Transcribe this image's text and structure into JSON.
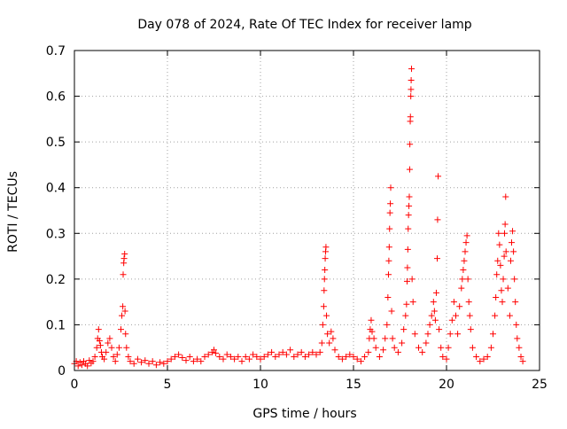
{
  "chart_data": {
    "type": "scatter",
    "title": "Day 078 of 2024, Rate Of TEC Index for receiver lamp",
    "xlabel": "GPS time / hours",
    "ylabel": "ROTI / TECUs",
    "xlim": [
      0,
      25
    ],
    "ylim": [
      0,
      0.7
    ],
    "xticks": [
      0,
      5,
      10,
      15,
      20,
      25
    ],
    "yticks": [
      0,
      0.1,
      0.2,
      0.3,
      0.4,
      0.5,
      0.6,
      0.7
    ],
    "xtick_labels": [
      "0",
      "5",
      "10",
      "15",
      "20",
      "25"
    ],
    "ytick_labels": [
      "0",
      "0.1",
      "0.2",
      "0.3",
      "0.4",
      "0.5",
      "0.6",
      "0.7"
    ],
    "grid": true,
    "marker": "+",
    "color": "#ff0000",
    "series": [
      {
        "name": "ROTI",
        "points": [
          [
            0.0,
            0.015
          ],
          [
            0.1,
            0.02
          ],
          [
            0.2,
            0.01
          ],
          [
            0.3,
            0.018
          ],
          [
            0.4,
            0.012
          ],
          [
            0.5,
            0.02
          ],
          [
            0.6,
            0.015
          ],
          [
            0.7,
            0.01
          ],
          [
            0.8,
            0.022
          ],
          [
            0.9,
            0.016
          ],
          [
            1.0,
            0.02
          ],
          [
            1.1,
            0.03
          ],
          [
            1.2,
            0.05
          ],
          [
            1.25,
            0.07
          ],
          [
            1.3,
            0.09
          ],
          [
            1.35,
            0.065
          ],
          [
            1.4,
            0.055
          ],
          [
            1.45,
            0.04
          ],
          [
            1.5,
            0.03
          ],
          [
            1.6,
            0.025
          ],
          [
            1.7,
            0.04
          ],
          [
            1.8,
            0.06
          ],
          [
            1.9,
            0.07
          ],
          [
            2.0,
            0.05
          ],
          [
            2.1,
            0.03
          ],
          [
            2.2,
            0.02
          ],
          [
            2.3,
            0.035
          ],
          [
            2.4,
            0.05
          ],
          [
            2.5,
            0.09
          ],
          [
            2.55,
            0.12
          ],
          [
            2.6,
            0.14
          ],
          [
            2.62,
            0.21
          ],
          [
            2.65,
            0.235
          ],
          [
            2.67,
            0.245
          ],
          [
            2.7,
            0.255
          ],
          [
            2.72,
            0.13
          ],
          [
            2.75,
            0.08
          ],
          [
            2.8,
            0.05
          ],
          [
            2.9,
            0.03
          ],
          [
            3.0,
            0.02
          ],
          [
            3.2,
            0.015
          ],
          [
            3.4,
            0.025
          ],
          [
            3.6,
            0.018
          ],
          [
            3.8,
            0.022
          ],
          [
            4.0,
            0.015
          ],
          [
            4.2,
            0.02
          ],
          [
            4.4,
            0.012
          ],
          [
            4.6,
            0.018
          ],
          [
            4.8,
            0.015
          ],
          [
            5.0,
            0.02
          ],
          [
            5.2,
            0.025
          ],
          [
            5.4,
            0.03
          ],
          [
            5.6,
            0.035
          ],
          [
            5.8,
            0.028
          ],
          [
            6.0,
            0.022
          ],
          [
            6.2,
            0.03
          ],
          [
            6.4,
            0.02
          ],
          [
            6.6,
            0.025
          ],
          [
            6.8,
            0.02
          ],
          [
            7.0,
            0.03
          ],
          [
            7.2,
            0.035
          ],
          [
            7.4,
            0.04
          ],
          [
            7.5,
            0.045
          ],
          [
            7.6,
            0.038
          ],
          [
            7.8,
            0.03
          ],
          [
            8.0,
            0.025
          ],
          [
            8.2,
            0.035
          ],
          [
            8.4,
            0.03
          ],
          [
            8.6,
            0.025
          ],
          [
            8.8,
            0.03
          ],
          [
            9.0,
            0.02
          ],
          [
            9.2,
            0.03
          ],
          [
            9.4,
            0.025
          ],
          [
            9.6,
            0.035
          ],
          [
            9.8,
            0.03
          ],
          [
            10.0,
            0.025
          ],
          [
            10.2,
            0.03
          ],
          [
            10.4,
            0.035
          ],
          [
            10.6,
            0.04
          ],
          [
            10.8,
            0.03
          ],
          [
            11.0,
            0.035
          ],
          [
            11.2,
            0.04
          ],
          [
            11.4,
            0.035
          ],
          [
            11.6,
            0.045
          ],
          [
            11.8,
            0.03
          ],
          [
            12.0,
            0.035
          ],
          [
            12.2,
            0.04
          ],
          [
            12.4,
            0.03
          ],
          [
            12.6,
            0.035
          ],
          [
            12.8,
            0.04
          ],
          [
            13.0,
            0.035
          ],
          [
            13.2,
            0.04
          ],
          [
            13.3,
            0.06
          ],
          [
            13.35,
            0.1
          ],
          [
            13.4,
            0.14
          ],
          [
            13.42,
            0.175
          ],
          [
            13.44,
            0.2
          ],
          [
            13.46,
            0.22
          ],
          [
            13.48,
            0.245
          ],
          [
            13.5,
            0.26
          ],
          [
            13.52,
            0.27
          ],
          [
            13.55,
            0.12
          ],
          [
            13.6,
            0.08
          ],
          [
            13.7,
            0.06
          ],
          [
            13.8,
            0.085
          ],
          [
            13.9,
            0.07
          ],
          [
            14.0,
            0.045
          ],
          [
            14.2,
            0.03
          ],
          [
            14.4,
            0.025
          ],
          [
            14.6,
            0.03
          ],
          [
            14.8,
            0.035
          ],
          [
            15.0,
            0.03
          ],
          [
            15.2,
            0.025
          ],
          [
            15.4,
            0.02
          ],
          [
            15.6,
            0.03
          ],
          [
            15.8,
            0.04
          ],
          [
            15.85,
            0.07
          ],
          [
            15.9,
            0.09
          ],
          [
            15.95,
            0.11
          ],
          [
            16.0,
            0.085
          ],
          [
            16.1,
            0.07
          ],
          [
            16.2,
            0.05
          ],
          [
            16.4,
            0.03
          ],
          [
            16.6,
            0.045
          ],
          [
            16.7,
            0.07
          ],
          [
            16.8,
            0.1
          ],
          [
            16.85,
            0.16
          ],
          [
            16.88,
            0.21
          ],
          [
            16.9,
            0.24
          ],
          [
            16.92,
            0.27
          ],
          [
            16.94,
            0.31
          ],
          [
            16.96,
            0.345
          ],
          [
            16.98,
            0.365
          ],
          [
            17.0,
            0.4
          ],
          [
            17.05,
            0.13
          ],
          [
            17.1,
            0.07
          ],
          [
            17.2,
            0.05
          ],
          [
            17.4,
            0.04
          ],
          [
            17.6,
            0.06
          ],
          [
            17.7,
            0.09
          ],
          [
            17.8,
            0.12
          ],
          [
            17.85,
            0.145
          ],
          [
            17.88,
            0.195
          ],
          [
            17.9,
            0.225
          ],
          [
            17.92,
            0.265
          ],
          [
            17.94,
            0.31
          ],
          [
            17.96,
            0.34
          ],
          [
            17.98,
            0.36
          ],
          [
            18.0,
            0.38
          ],
          [
            18.02,
            0.44
          ],
          [
            18.03,
            0.495
          ],
          [
            18.05,
            0.545
          ],
          [
            18.06,
            0.555
          ],
          [
            18.08,
            0.6
          ],
          [
            18.09,
            0.615
          ],
          [
            18.1,
            0.635
          ],
          [
            18.12,
            0.66
          ],
          [
            18.15,
            0.2
          ],
          [
            18.2,
            0.15
          ],
          [
            18.3,
            0.08
          ],
          [
            18.5,
            0.05
          ],
          [
            18.7,
            0.04
          ],
          [
            18.9,
            0.06
          ],
          [
            19.0,
            0.08
          ],
          [
            19.1,
            0.1
          ],
          [
            19.2,
            0.12
          ],
          [
            19.3,
            0.15
          ],
          [
            19.35,
            0.13
          ],
          [
            19.4,
            0.11
          ],
          [
            19.45,
            0.17
          ],
          [
            19.5,
            0.245
          ],
          [
            19.52,
            0.33
          ],
          [
            19.55,
            0.425
          ],
          [
            19.6,
            0.09
          ],
          [
            19.7,
            0.05
          ],
          [
            19.8,
            0.03
          ],
          [
            20.0,
            0.025
          ],
          [
            20.1,
            0.05
          ],
          [
            20.2,
            0.08
          ],
          [
            20.3,
            0.11
          ],
          [
            20.4,
            0.15
          ],
          [
            20.5,
            0.12
          ],
          [
            20.6,
            0.08
          ],
          [
            20.7,
            0.14
          ],
          [
            20.8,
            0.18
          ],
          [
            20.85,
            0.2
          ],
          [
            20.9,
            0.22
          ],
          [
            20.95,
            0.24
          ],
          [
            21.0,
            0.26
          ],
          [
            21.05,
            0.28
          ],
          [
            21.1,
            0.295
          ],
          [
            21.15,
            0.2
          ],
          [
            21.2,
            0.15
          ],
          [
            21.25,
            0.12
          ],
          [
            21.3,
            0.09
          ],
          [
            21.4,
            0.05
          ],
          [
            21.6,
            0.03
          ],
          [
            21.8,
            0.02
          ],
          [
            22.0,
            0.025
          ],
          [
            22.2,
            0.03
          ],
          [
            22.4,
            0.05
          ],
          [
            22.5,
            0.08
          ],
          [
            22.6,
            0.12
          ],
          [
            22.65,
            0.16
          ],
          [
            22.7,
            0.21
          ],
          [
            22.75,
            0.24
          ],
          [
            22.8,
            0.3
          ],
          [
            22.85,
            0.275
          ],
          [
            22.9,
            0.23
          ],
          [
            22.95,
            0.175
          ],
          [
            23.0,
            0.15
          ],
          [
            23.05,
            0.2
          ],
          [
            23.1,
            0.25
          ],
          [
            23.12,
            0.3
          ],
          [
            23.15,
            0.32
          ],
          [
            23.18,
            0.38
          ],
          [
            23.2,
            0.26
          ],
          [
            23.3,
            0.18
          ],
          [
            23.4,
            0.12
          ],
          [
            23.45,
            0.24
          ],
          [
            23.5,
            0.28
          ],
          [
            23.55,
            0.305
          ],
          [
            23.6,
            0.26
          ],
          [
            23.65,
            0.2
          ],
          [
            23.7,
            0.15
          ],
          [
            23.75,
            0.1
          ],
          [
            23.8,
            0.07
          ],
          [
            23.9,
            0.05
          ],
          [
            24.0,
            0.03
          ],
          [
            24.1,
            0.02
          ]
        ]
      }
    ]
  }
}
